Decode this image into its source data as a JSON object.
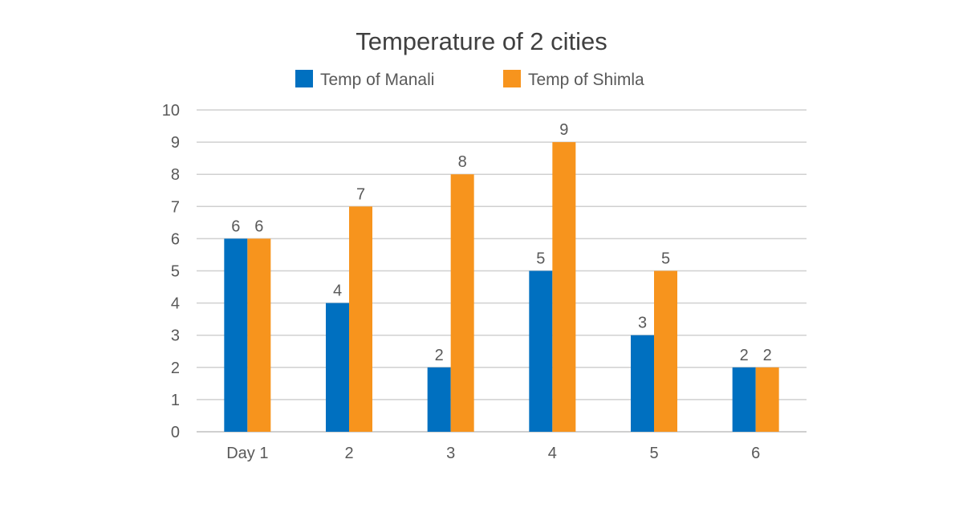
{
  "chart_data": {
    "type": "bar",
    "title": "Temperature of 2 cities",
    "xlabel": "",
    "ylabel": "",
    "categories": [
      "Day 1",
      "2",
      "3",
      "4",
      "5",
      "6"
    ],
    "series": [
      {
        "name": "Temp of Manali",
        "values": [
          6,
          4,
          2,
          5,
          3,
          2
        ],
        "color": "#0070C0"
      },
      {
        "name": "Temp of Shimla",
        "values": [
          6,
          7,
          8,
          9,
          5,
          2
        ],
        "color": "#F7941D"
      }
    ],
    "ylim": [
      0,
      10
    ],
    "yticks": [
      0,
      1,
      2,
      3,
      4,
      5,
      6,
      7,
      8,
      9,
      10
    ],
    "grid": true,
    "legend": "top",
    "data_labels": true
  }
}
